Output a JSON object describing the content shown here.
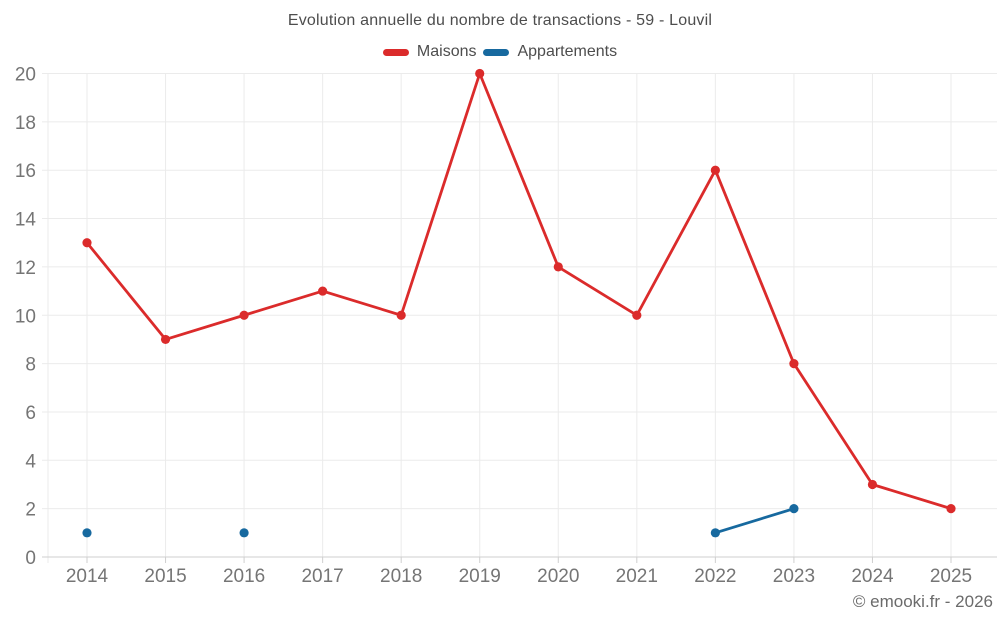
{
  "chart_data": {
    "type": "line",
    "title": "Evolution annuelle du nombre de transactions - 59 - Louvil",
    "categories": [
      "2014",
      "2015",
      "2016",
      "2017",
      "2018",
      "2019",
      "2020",
      "2021",
      "2022",
      "2023",
      "2024",
      "2025"
    ],
    "series": [
      {
        "name": "Maisons",
        "color": "#db2b2b",
        "values": [
          13,
          9,
          10,
          11,
          10,
          20,
          12,
          10,
          16,
          8,
          3,
          2
        ]
      },
      {
        "name": "Appartements",
        "color": "#17699f",
        "values": [
          1,
          null,
          1,
          null,
          null,
          null,
          null,
          null,
          1,
          2,
          null,
          null
        ]
      }
    ],
    "ylim": [
      0,
      20
    ],
    "ytick_step": 2,
    "grid": true,
    "legend_position": "top",
    "xlabel": "",
    "ylabel": ""
  },
  "credit": "© emooki.fr - 2026",
  "colors": {
    "grid": "#ebebeb",
    "axis": "#cfcfcf",
    "tick_label": "#757575",
    "title_text": "#4d4d4d",
    "credit_text": "#6b6b6b",
    "background": "#ffffff"
  }
}
